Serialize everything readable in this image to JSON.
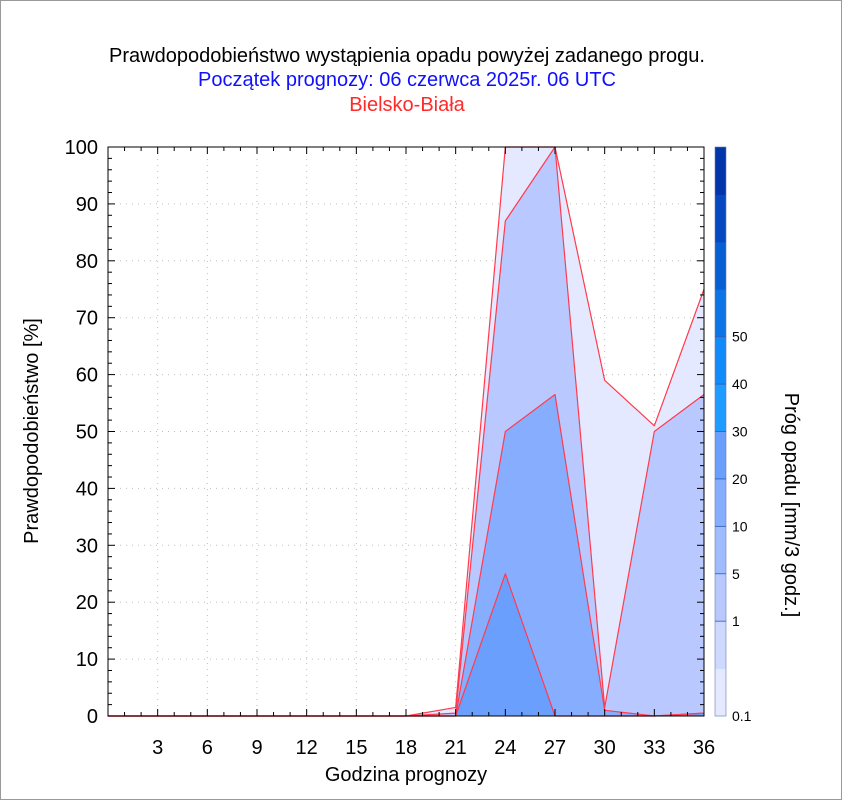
{
  "titles": {
    "line1": "Prawdopodobieństwo wystąpienia opadu powyżej zadanego progu.",
    "line2": "Początek prognozy: 06 czerwca 2025r. 06 UTC",
    "line3": "Bielsko-Biała"
  },
  "chart_data": {
    "type": "area",
    "xlabel": "Godzina prognozy",
    "ylabel": "Prawdopodobieństwo [%]",
    "xlim": [
      0,
      36
    ],
    "ylim": [
      0,
      100
    ],
    "x": [
      0,
      3,
      6,
      9,
      12,
      15,
      18,
      21,
      24,
      27,
      30,
      33,
      36
    ],
    "x_tick_labels": [
      "3",
      "6",
      "9",
      "12",
      "15",
      "18",
      "21",
      "24",
      "27",
      "30",
      "33",
      "36"
    ],
    "y_tick_labels": [
      "0",
      "10",
      "20",
      "30",
      "40",
      "50",
      "60",
      "70",
      "80",
      "90",
      "100"
    ],
    "grid": true,
    "series": [
      {
        "name": "0.1",
        "color": "#e4e9ff",
        "values": [
          0,
          0,
          0,
          0,
          0,
          0,
          0,
          1.5,
          100,
          100,
          59,
          51,
          75
        ]
      },
      {
        "name": "1",
        "color": "#b9c9ff",
        "values": [
          0,
          0,
          0,
          0,
          0,
          0,
          0,
          0.5,
          87,
          100,
          1.5,
          50,
          56.5
        ]
      },
      {
        "name": "5",
        "color": "#87aefe",
        "values": [
          0,
          0,
          0,
          0,
          0,
          0,
          0,
          0,
          50,
          56.5,
          1,
          0,
          0.5
        ]
      },
      {
        "name": "10",
        "color": "#6a9ffe",
        "values": [
          0,
          0,
          0,
          0,
          0,
          0,
          0,
          0,
          25,
          0,
          0,
          0,
          0.5
        ]
      }
    ],
    "outline_color": "#ff3b4e",
    "colorbar": {
      "label": "Próg opadu [mm/3 godz.]",
      "tick_labels": [
        "0.1",
        "1",
        "5",
        "10",
        "20",
        "30",
        "40",
        "50"
      ],
      "colors": [
        "#e4e9ff",
        "#cdd9ff",
        "#b9c9ff",
        "#9fbcff",
        "#87aefe",
        "#6a9ffe",
        "#1e9cff",
        "#128afa",
        "#0d74e6",
        "#085ed3",
        "#0548bf",
        "#0234aa"
      ]
    }
  }
}
